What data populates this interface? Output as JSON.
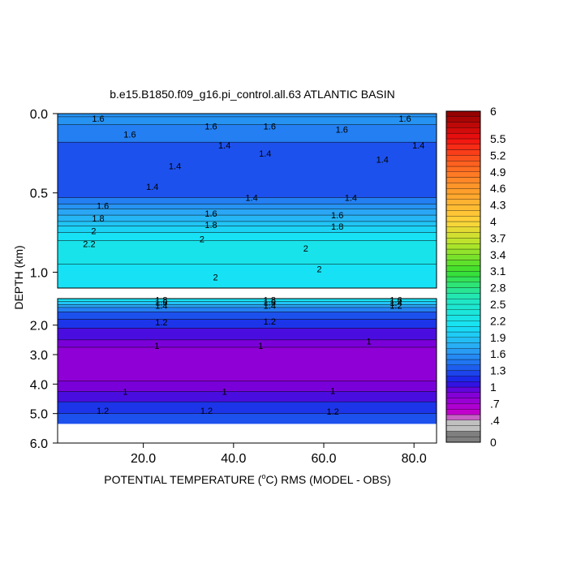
{
  "chart_data": {
    "type": "heatmap",
    "title": "b.e15.B1850.f09_g16.pi_control.all.63 ATLANTIC BASIN",
    "xlabel_prefix": "POTENTIAL TEMPERATURE (",
    "xlabel_degree": "o",
    "xlabel_suffix": "C) RMS (MODEL - OBS)",
    "ylabel": "DEPTH (km)",
    "x_range": [
      1,
      85
    ],
    "x_ticks": [
      "20.0",
      "40.0",
      "60.0",
      "80.0"
    ],
    "x_tick_values": [
      20,
      40,
      60,
      80
    ],
    "upper_panel": {
      "depth_range": [
        0.0,
        1.1
      ],
      "y_ticks": [
        "0.0",
        "0.5",
        "1.0"
      ],
      "y_tick_values": [
        0.0,
        0.5,
        1.0
      ],
      "bands": [
        {
          "from": 0.0,
          "to": 0.02,
          "value": 1.6
        },
        {
          "from": 0.02,
          "to": 0.07,
          "value": 1.6
        },
        {
          "from": 0.07,
          "to": 0.18,
          "value": 1.5
        },
        {
          "from": 0.18,
          "to": 0.53,
          "value": 1.3
        },
        {
          "from": 0.53,
          "to": 0.57,
          "value": 1.5
        },
        {
          "from": 0.57,
          "to": 0.6,
          "value": 1.6
        },
        {
          "from": 0.6,
          "to": 0.64,
          "value": 1.7
        },
        {
          "from": 0.64,
          "to": 0.68,
          "value": 1.8
        },
        {
          "from": 0.68,
          "to": 0.71,
          "value": 1.9
        },
        {
          "from": 0.71,
          "to": 0.75,
          "value": 2.0
        },
        {
          "from": 0.75,
          "to": 0.8,
          "value": 2.1
        },
        {
          "from": 0.8,
          "to": 0.95,
          "value": 2.2
        },
        {
          "from": 0.95,
          "to": 1.1,
          "value": 2.1
        }
      ],
      "contour_labels": [
        {
          "x": 10,
          "depth": 0.03,
          "text": "1.6"
        },
        {
          "x": 35,
          "depth": 0.08,
          "text": "1.6"
        },
        {
          "x": 48,
          "depth": 0.08,
          "text": "1.6"
        },
        {
          "x": 64,
          "depth": 0.1,
          "text": "1.6"
        },
        {
          "x": 78,
          "depth": 0.03,
          "text": "1.6"
        },
        {
          "x": 17,
          "depth": 0.13,
          "text": "1.6"
        },
        {
          "x": 38,
          "depth": 0.2,
          "text": "1.4"
        },
        {
          "x": 47,
          "depth": 0.25,
          "text": "1.4"
        },
        {
          "x": 27,
          "depth": 0.33,
          "text": "1.4"
        },
        {
          "x": 73,
          "depth": 0.29,
          "text": "1.4"
        },
        {
          "x": 81,
          "depth": 0.2,
          "text": "1.4"
        },
        {
          "x": 22,
          "depth": 0.46,
          "text": "1.4"
        },
        {
          "x": 44,
          "depth": 0.53,
          "text": "1.4"
        },
        {
          "x": 66,
          "depth": 0.53,
          "text": "1.4"
        },
        {
          "x": 11,
          "depth": 0.58,
          "text": "1.6"
        },
        {
          "x": 35,
          "depth": 0.63,
          "text": "1.6"
        },
        {
          "x": 63,
          "depth": 0.64,
          "text": "1.6"
        },
        {
          "x": 10,
          "depth": 0.66,
          "text": "1.8"
        },
        {
          "x": 35,
          "depth": 0.7,
          "text": "1.8"
        },
        {
          "x": 63,
          "depth": 0.71,
          "text": "1.8"
        },
        {
          "x": 9,
          "depth": 0.74,
          "text": "2"
        },
        {
          "x": 33,
          "depth": 0.79,
          "text": "2"
        },
        {
          "x": 56,
          "depth": 0.85,
          "text": "2"
        },
        {
          "x": 8,
          "depth": 0.82,
          "text": "2.2"
        },
        {
          "x": 59,
          "depth": 0.98,
          "text": "2"
        },
        {
          "x": 36,
          "depth": 1.03,
          "text": "2"
        }
      ]
    },
    "lower_panel": {
      "depth_range": [
        1.1,
        6.0
      ],
      "y_ticks": [
        "2.0",
        "3.0",
        "4.0",
        "5.0",
        "6.0"
      ],
      "y_tick_values": [
        2.0,
        3.0,
        4.0,
        5.0,
        6.0
      ],
      "data_bottom_depth": 5.35,
      "bands": [
        {
          "from": 1.1,
          "to": 1.2,
          "value": 2.1
        },
        {
          "from": 1.2,
          "to": 1.3,
          "value": 1.9
        },
        {
          "from": 1.3,
          "to": 1.4,
          "value": 1.7
        },
        {
          "from": 1.4,
          "to": 1.55,
          "value": 1.5
        },
        {
          "from": 1.55,
          "to": 1.8,
          "value": 1.3
        },
        {
          "from": 1.8,
          "to": 2.1,
          "value": 1.2
        },
        {
          "from": 2.1,
          "to": 2.5,
          "value": 1.0
        },
        {
          "from": 2.5,
          "to": 2.75,
          "value": 0.9
        },
        {
          "from": 2.75,
          "to": 3.9,
          "value": 0.8
        },
        {
          "from": 3.9,
          "to": 4.25,
          "value": 0.9
        },
        {
          "from": 4.25,
          "to": 4.6,
          "value": 1.0
        },
        {
          "from": 4.6,
          "to": 5.0,
          "value": 1.2
        },
        {
          "from": 5.0,
          "to": 5.35,
          "value": 1.3
        }
      ],
      "contour_labels": [
        {
          "x": 24,
          "depth": 1.14,
          "text": "1.8"
        },
        {
          "x": 24,
          "depth": 1.23,
          "text": "1.6"
        },
        {
          "x": 24,
          "depth": 1.33,
          "text": "1.4"
        },
        {
          "x": 48,
          "depth": 1.14,
          "text": "1.8"
        },
        {
          "x": 48,
          "depth": 1.23,
          "text": "1.6"
        },
        {
          "x": 48,
          "depth": 1.33,
          "text": "1.4"
        },
        {
          "x": 76,
          "depth": 1.14,
          "text": "1.6"
        },
        {
          "x": 76,
          "depth": 1.24,
          "text": "1.4"
        },
        {
          "x": 76,
          "depth": 1.34,
          "text": "1.2"
        },
        {
          "x": 24,
          "depth": 1.9,
          "text": "1.2"
        },
        {
          "x": 48,
          "depth": 1.87,
          "text": "1.2"
        },
        {
          "x": 23,
          "depth": 2.7,
          "text": "1"
        },
        {
          "x": 46,
          "depth": 2.7,
          "text": "1"
        },
        {
          "x": 70,
          "depth": 2.55,
          "text": "1"
        },
        {
          "x": 16,
          "depth": 4.25,
          "text": "1"
        },
        {
          "x": 38,
          "depth": 4.25,
          "text": "1"
        },
        {
          "x": 62,
          "depth": 4.22,
          "text": "1"
        },
        {
          "x": 11,
          "depth": 4.9,
          "text": "1.2"
        },
        {
          "x": 34,
          "depth": 4.9,
          "text": "1.2"
        },
        {
          "x": 62,
          "depth": 4.92,
          "text": "1.2"
        }
      ]
    },
    "colorbar": {
      "min": 0,
      "max": 6,
      "step": 0.1,
      "labels": [
        "6",
        "5.5",
        "5.2",
        "4.9",
        "4.6",
        "4.3",
        "4",
        "3.7",
        "3.4",
        "3.1",
        "2.8",
        "2.5",
        "2.2",
        "1.9",
        "1.6",
        "1.3",
        "1",
        ".7",
        ".4",
        "0"
      ],
      "label_values": [
        6,
        5.5,
        5.2,
        4.9,
        4.6,
        4.3,
        4.0,
        3.7,
        3.4,
        3.1,
        2.8,
        2.5,
        2.2,
        1.9,
        1.6,
        1.3,
        1.0,
        0.7,
        0.4,
        0
      ],
      "colors": {
        "gray_dark": "#7f7f7f",
        "gray_light": "#c0c0c0",
        "magenta": "#cc00cc",
        "purple": "#7a00d9",
        "blue_dark": "#1a1ae6",
        "blue": "#1f6cf0",
        "azure": "#2aa6f5",
        "cyan": "#17e2f5",
        "teal": "#20e8c0",
        "green": "#3adf2c",
        "yellow_green": "#b6e52a",
        "yellow": "#ffd43a",
        "orange": "#ff9a2a",
        "red_orange": "#ff5a1f",
        "red": "#f01010",
        "dark_red": "#8b0000"
      }
    }
  }
}
